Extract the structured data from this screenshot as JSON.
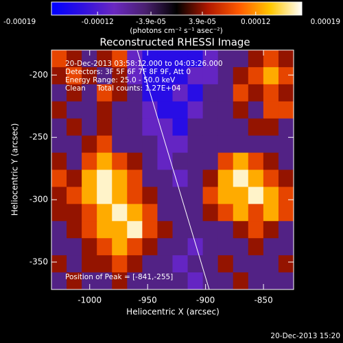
{
  "chart_data": {
    "type": "heatmap",
    "title": "Reconstructed RHESSI Image",
    "x_label": "Heliocentric X (arcsec)",
    "y_label": "Heliocentric Y (arcsec)",
    "xlim": [
      -1033,
      -824
    ],
    "ylim": [
      -372,
      -180
    ],
    "xticks": [
      -1000,
      -950,
      -900,
      -850
    ],
    "yticks": [
      -200,
      -250,
      -300,
      -350
    ],
    "colorbar_label": "(photons cm⁻² s⁻¹ asec⁻²)",
    "clim": [
      -0.00019,
      0.00019
    ],
    "cticks": [
      -0.00019,
      -0.00012,
      {
        "value": -3.9e-05,
        "label": "-3.9e-05"
      },
      {
        "value": 3.9e-05,
        "label": "3.9e-05"
      },
      0.00012,
      0.00019
    ],
    "colors": [
      "#0000ff",
      "#3010e0",
      "#6a28c0",
      "#4a2070",
      "#000000",
      "#b01800",
      "#ff5a00",
      "#ffc800",
      "#ffffff"
    ],
    "annotations": [
      "20-Dec-2013 03:58:12.000 to 04:03:26.000",
      "Detectors: 3F 5F 6F 7F 8F 9F, Att 0",
      "Energy Range: 25.0 - 50.0 keV",
      "Clean     Total counts: 1.27E+04"
    ],
    "peak_label": "Position of Peak = [-841,-255]",
    "timestamp": "20-Dec-2013 15:20",
    "z": [
      [
        8e-05,
        4e-05,
        -6e-05,
        4e-05,
        8e-05,
        -0.0001,
        -0.00015,
        -0.00015,
        -0.00015,
        -0.00015,
        -0.0001,
        -6e-05,
        -6e-05,
        4e-05,
        8e-05,
        4e-05
      ],
      [
        4e-05,
        8e-05,
        4e-05,
        -6e-05,
        4e-05,
        -0.0001,
        -0.00015,
        -0.00015,
        -0.00015,
        -0.0001,
        -0.0001,
        -6e-05,
        4e-05,
        8e-05,
        0.00013,
        8e-05
      ],
      [
        -6e-05,
        4e-05,
        -6e-05,
        8e-05,
        4e-05,
        -6e-05,
        -0.00015,
        -0.00015,
        -0.0001,
        -0.00015,
        -6e-05,
        -6e-05,
        8e-05,
        4e-05,
        8e-05,
        4e-05
      ],
      [
        4e-05,
        -6e-05,
        -6e-05,
        4e-05,
        -6e-05,
        -6e-05,
        -0.0001,
        -0.00015,
        -0.00015,
        -0.0001,
        -6e-05,
        -6e-05,
        4e-05,
        -6e-05,
        8e-05,
        8e-05
      ],
      [
        -6e-05,
        4e-05,
        -6e-05,
        4e-05,
        -6e-05,
        -6e-05,
        -0.0001,
        -0.0001,
        -0.00015,
        -6e-05,
        -6e-05,
        -6e-05,
        -6e-05,
        4e-05,
        4e-05,
        -6e-05
      ],
      [
        -6e-05,
        -6e-05,
        4e-05,
        8e-05,
        -6e-05,
        -6e-05,
        -6e-05,
        -0.0001,
        -0.0001,
        -6e-05,
        -6e-05,
        -6e-05,
        -6e-05,
        -6e-05,
        -6e-05,
        -6e-05
      ],
      [
        4e-05,
        -6e-05,
        8e-05,
        0.00013,
        8e-05,
        4e-05,
        -6e-05,
        -0.0001,
        -6e-05,
        -6e-05,
        -6e-05,
        8e-05,
        0.00013,
        8e-05,
        4e-05,
        -6e-05
      ],
      [
        8e-05,
        4e-05,
        0.00013,
        0.00018,
        0.00013,
        8e-05,
        -6e-05,
        -6e-05,
        -0.0001,
        -6e-05,
        4e-05,
        0.00013,
        0.00018,
        0.00013,
        8e-05,
        4e-05
      ],
      [
        4e-05,
        8e-05,
        0.00013,
        0.00018,
        0.00013,
        8e-05,
        4e-05,
        -6e-05,
        -6e-05,
        -6e-05,
        8e-05,
        0.00013,
        0.00013,
        0.00018,
        0.00013,
        8e-05
      ],
      [
        4e-05,
        4e-05,
        8e-05,
        0.00013,
        0.00018,
        0.00013,
        8e-05,
        -6e-05,
        -6e-05,
        -6e-05,
        4e-05,
        8e-05,
        0.00013,
        8e-05,
        0.00013,
        8e-05
      ],
      [
        -6e-05,
        4e-05,
        8e-05,
        0.00013,
        0.00013,
        0.00018,
        8e-05,
        4e-05,
        -6e-05,
        -6e-05,
        -6e-05,
        -6e-05,
        4e-05,
        8e-05,
        4e-05,
        -6e-05
      ],
      [
        -6e-05,
        -6e-05,
        4e-05,
        8e-05,
        0.00013,
        8e-05,
        4e-05,
        -6e-05,
        -6e-05,
        -0.0001,
        -6e-05,
        -6e-05,
        -6e-05,
        4e-05,
        -6e-05,
        -6e-05
      ],
      [
        4e-05,
        -6e-05,
        4e-05,
        4e-05,
        8e-05,
        4e-05,
        -6e-05,
        -6e-05,
        -0.0001,
        -6e-05,
        -6e-05,
        4e-05,
        -6e-05,
        -6e-05,
        -6e-05,
        4e-05
      ],
      [
        -6e-05,
        4e-05,
        -6e-05,
        -6e-05,
        4e-05,
        -6e-05,
        -6e-05,
        -6e-05,
        -6e-05,
        -0.0001,
        -6e-05,
        -6e-05,
        4e-05,
        -6e-05,
        -6e-05,
        -6e-05
      ]
    ]
  }
}
